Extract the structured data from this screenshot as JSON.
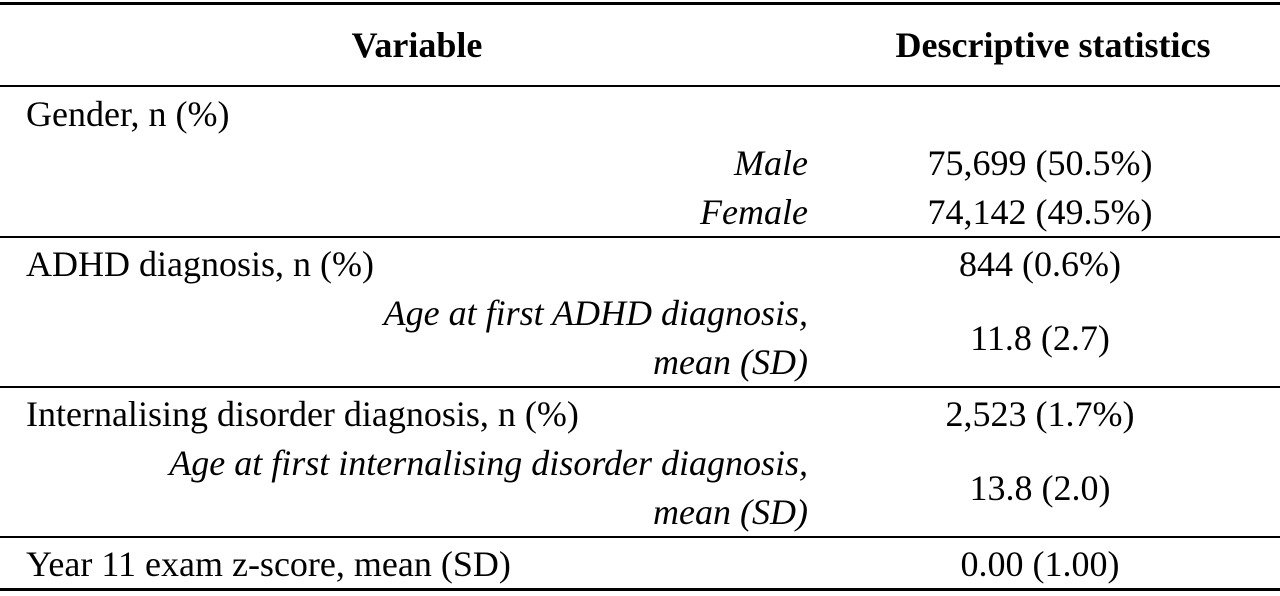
{
  "table": {
    "header": {
      "variable": "Variable",
      "statistics": "Descriptive statistics"
    },
    "sections": [
      {
        "label": "Gender, n (%)",
        "subrows": [
          {
            "label": "Male",
            "value": "75,699 (50.5%)"
          },
          {
            "label": "Female",
            "value": "74,142 (49.5%)"
          }
        ]
      },
      {
        "label": "ADHD diagnosis, n (%)",
        "value": "844 (0.6%)",
        "subrows": [
          {
            "label": [
              "Age at first ADHD diagnosis,",
              "mean (SD)"
            ],
            "value": "11.8 (2.7)"
          }
        ]
      },
      {
        "label": "Internalising disorder diagnosis, n (%)",
        "value": "2,523 (1.7%)",
        "subrows": [
          {
            "label": [
              "Age at first internalising disorder diagnosis,",
              "mean (SD)"
            ],
            "value": "13.8 (2.0)"
          }
        ]
      },
      {
        "label": "Year 11 exam z-score, mean (SD)",
        "value": "0.00 (1.00)"
      }
    ]
  }
}
